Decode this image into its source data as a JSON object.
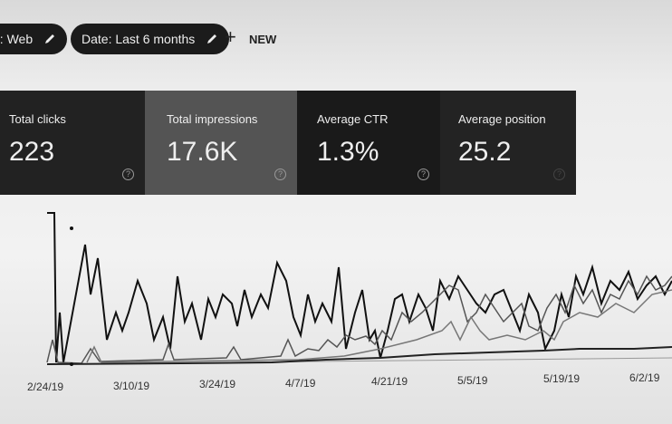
{
  "filters": [
    {
      "label": "e: Web"
    },
    {
      "label": "Date: Last 6 months"
    }
  ],
  "new_button": "NEW",
  "metrics": [
    {
      "label": "Total clicks",
      "value": "223"
    },
    {
      "label": "Total impressions",
      "value": "17.6K"
    },
    {
      "label": "Average CTR",
      "value": "1.3%"
    },
    {
      "label": "Average position",
      "value": "25.2"
    }
  ],
  "x_axis_labels": [
    "2/24/19",
    "3/10/19",
    "3/24/19",
    "4/7/19",
    "4/21/19",
    "5/5/19",
    "5/19/19",
    "6/2/19"
  ]
}
